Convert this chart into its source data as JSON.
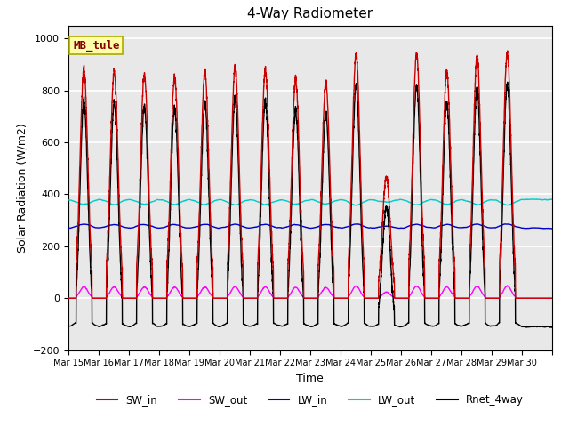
{
  "title": "4-Way Radiometer",
  "xlabel": "Time",
  "ylabel": "Solar Radiation (W/m2)",
  "annotation_text": "MB_tule",
  "ylim": [
    -200,
    1050
  ],
  "n_days": 16,
  "x_tick_labels": [
    "Mar 15",
    "Mar 16",
    "Mar 17",
    "Mar 18",
    "Mar 19",
    "Mar 20",
    "Mar 21",
    "Mar 22",
    "Mar 23",
    "Mar 24",
    "Mar 25",
    "Mar 26",
    "Mar 27",
    "Mar 28",
    "Mar 29",
    "Mar 30"
  ],
  "series_colors": {
    "SW_in": "#cc0000",
    "SW_out": "#ff00ff",
    "LW_in": "#0000cc",
    "LW_out": "#00cccc",
    "Rnet_4way": "#000000"
  },
  "sw_peaks": [
    880,
    870,
    860,
    850,
    870,
    890,
    880,
    840,
    830,
    940,
    470,
    940,
    870,
    930,
    950,
    0
  ],
  "lw_out_base": 380,
  "lw_in_base": 270,
  "background_color": "#e8e8e8",
  "grid_color": "#ffffff",
  "title_fontsize": 11,
  "tick_fontsize": 7,
  "label_fontsize": 9
}
